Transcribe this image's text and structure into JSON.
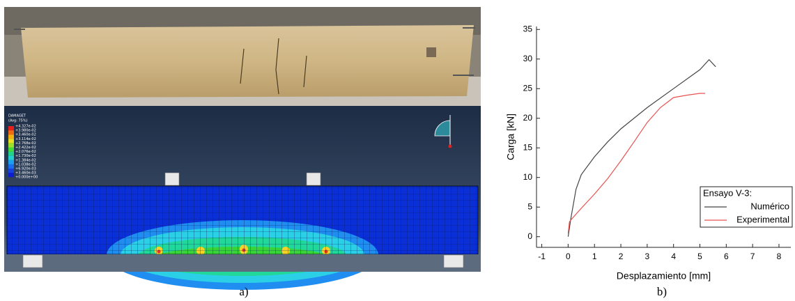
{
  "figure_labels": {
    "left": "a)",
    "right": "b)"
  },
  "fem_legend": {
    "title": "DAMAGET",
    "subtitle": "(Avg: 75%)",
    "levels": [
      "+4.327e-02",
      "+3.980e-02",
      "+3.460e-02",
      "+3.114e-02",
      "+2.768e-02",
      "+2.422e-02",
      "+2.076e-02",
      "+1.730e-02",
      "+1.384e-02",
      "+1.038e-02",
      "+6.920e-03",
      "+3.460e-03",
      "+0.000e+00"
    ]
  },
  "chart_data": {
    "type": "line",
    "xlabel": "Desplazamiento [mm]",
    "ylabel": "Carga [kN]",
    "legend_title": "Ensayo V-3:",
    "legend": "lower right",
    "xlim": [
      -1.2,
      8.45
    ],
    "ylim": [
      -1.8,
      35.5
    ],
    "xticks": [
      -1,
      0,
      1,
      2,
      3,
      4,
      5,
      6,
      7,
      8
    ],
    "yticks": [
      0,
      5,
      10,
      15,
      20,
      25,
      30,
      35
    ],
    "series": [
      {
        "name": "Numérico",
        "color": "#444444",
        "x": [
          0,
          0.1,
          0.3,
          0.5,
          1,
          1.5,
          2,
          3,
          4,
          5,
          5.35,
          5.6
        ],
        "values": [
          0,
          3,
          8,
          10.5,
          13.5,
          16,
          18.2,
          21.8,
          25,
          28.2,
          29.9,
          28.7
        ]
      },
      {
        "name": "Experimental",
        "color": "#e8514f",
        "x": [
          0,
          0.05,
          0.1,
          0.3,
          0.5,
          1,
          1.5,
          2,
          2.5,
          3,
          3.5,
          4,
          4.5,
          5,
          5.2
        ],
        "values": [
          0.5,
          2.5,
          2.8,
          3.8,
          4.8,
          7.2,
          9.8,
          12.8,
          16,
          19.3,
          21.8,
          23.5,
          23.9,
          24.2,
          24.2
        ]
      }
    ]
  }
}
